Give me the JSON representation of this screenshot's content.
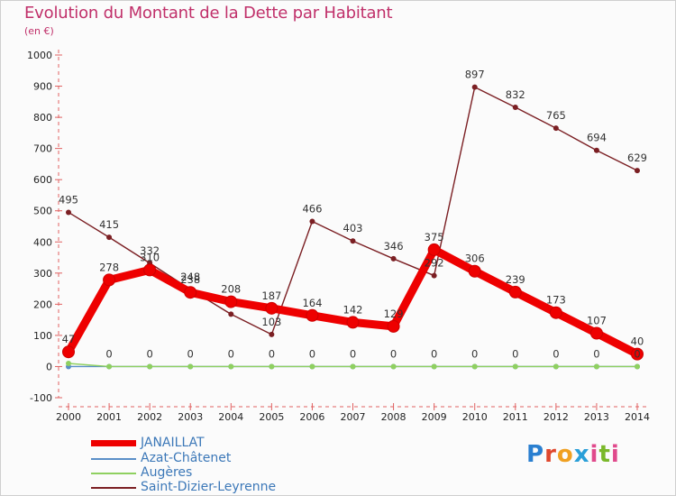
{
  "title": "Evolution du Montant de la Dette par Habitant",
  "unit": "(en €)",
  "logo": "Proxiti",
  "chart_data": {
    "type": "line",
    "x": [
      2000,
      2001,
      2002,
      2003,
      2004,
      2005,
      2006,
      2007,
      2008,
      2009,
      2010,
      2011,
      2012,
      2013,
      2014
    ],
    "ylim": [
      -100,
      1000
    ],
    "yticks": [
      -100,
      0,
      100,
      200,
      300,
      400,
      500,
      600,
      700,
      800,
      900,
      1000
    ],
    "grid": false,
    "legend": "bottom-left",
    "series": [
      {
        "name": "Saint-Dizier-Leyrenne",
        "color": "#7b1f23",
        "values": [
          495,
          415,
          332,
          248,
          168,
          103,
          466,
          403,
          346,
          292,
          897,
          832,
          765,
          694,
          629
        ],
        "labels": [
          "495",
          "415",
          "332",
          "248",
          "",
          "103",
          "466",
          "403",
          "346",
          "292",
          "897",
          "832",
          "765",
          "694",
          "629"
        ]
      },
      {
        "name": "Azat-Châtenet",
        "color": "#5a8fc8",
        "values": [
          0,
          0,
          0,
          0,
          0,
          0,
          0,
          0,
          0,
          0,
          0,
          0,
          0,
          0,
          0
        ],
        "labels": [
          "",
          "",
          "",
          "",
          "",
          "",
          "",
          "",
          "",
          "",
          "",
          "",
          "",
          "",
          ""
        ]
      },
      {
        "name": "Augères",
        "color": "#8fd060",
        "values": [
          10,
          0,
          0,
          0,
          0,
          0,
          0,
          0,
          0,
          0,
          0,
          0,
          0,
          0,
          0
        ],
        "labels": [
          "",
          "0",
          "0",
          "0",
          "0",
          "0",
          "0",
          "0",
          "0",
          "0",
          "0",
          "0",
          "0",
          "0",
          "0"
        ]
      },
      {
        "name": "JANAILLAT",
        "color": "#ee0000",
        "values": [
          47,
          278,
          310,
          238,
          208,
          187,
          164,
          142,
          129,
          375,
          306,
          239,
          173,
          107,
          40
        ],
        "labels": [
          "47",
          "278",
          "310",
          "238",
          "208",
          "187",
          "164",
          "142",
          "129",
          "375",
          "306",
          "239",
          "173",
          "107",
          "40"
        ]
      }
    ],
    "legend_entries": [
      "JANAILLAT",
      "Azat-Châtenet",
      "Augères",
      "Saint-Dizier-Leyrenne"
    ]
  }
}
